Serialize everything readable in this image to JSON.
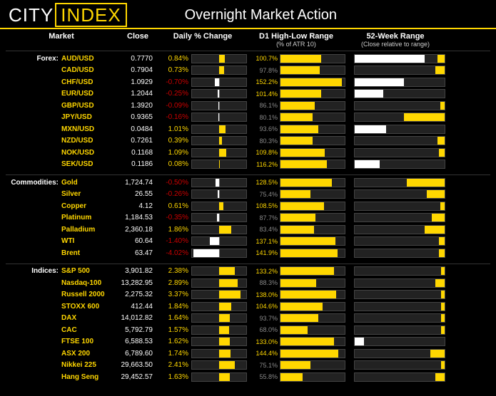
{
  "brand": {
    "part1": "CITY",
    "part2": "INDEX"
  },
  "title": "Overnight Market Action",
  "columns": {
    "market": "Market",
    "close": "Close",
    "daily": "Daily % Change",
    "d1": "D1 High-Low Range",
    "d1_sub": "(% of ATR 10)",
    "w52": "52-Week Range",
    "w52_sub": "(Close relative to range)"
  },
  "chart_style": {
    "daily_max_abs_pct": 4.2,
    "range_max_pct": 160,
    "bar_fill_pos": "#ffd700",
    "bar_fill_neg": "#ffffff",
    "bar_bg": "#222222",
    "bar_border": "#444444",
    "text_pos": "#ffd700",
    "text_neg": "#cc0000",
    "text_muted": "#888888"
  },
  "groups": [
    {
      "name": "Forex:",
      "rows": [
        {
          "m": "AUD/USD",
          "c": "0.7770",
          "p": 0.84,
          "r": 100.7,
          "wl": 0.78,
          "wr": 0.08
        },
        {
          "m": "CAD/USD",
          "c": "0.7904",
          "p": 0.73,
          "r": 97.8,
          "wl": 0.0,
          "wr": 0.1
        },
        {
          "m": "CHF/USD",
          "c": "1.0929",
          "p": -0.7,
          "r": 152.2,
          "wl": 0.55,
          "wr": 0.0
        },
        {
          "m": "EUR/USD",
          "c": "1.2044",
          "p": -0.25,
          "r": 101.4,
          "wl": 0.32,
          "wr": 0.0
        },
        {
          "m": "GBP/USD",
          "c": "1.3920",
          "p": -0.09,
          "r": 86.1,
          "wl": 0.0,
          "wr": 0.05
        },
        {
          "m": "JPY/USD",
          "c": "0.9365",
          "p": -0.16,
          "r": 80.1,
          "wl": 0.0,
          "wr": 0.45
        },
        {
          "m": "MXN/USD",
          "c": "0.0484",
          "p": 1.01,
          "r": 93.6,
          "wl": 0.35,
          "wr": 0.0
        },
        {
          "m": "NZD/USD",
          "c": "0.7261",
          "p": 0.39,
          "r": 80.3,
          "wl": 0.0,
          "wr": 0.08
        },
        {
          "m": "NOK/USD",
          "c": "0.1168",
          "p": 1.09,
          "r": 109.8,
          "wl": 0.0,
          "wr": 0.06
        },
        {
          "m": "SEK/USD",
          "c": "0.1186",
          "p": 0.08,
          "r": 116.2,
          "wl": 0.28,
          "wr": 0.0
        }
      ]
    },
    {
      "name": "Commodities:",
      "rows": [
        {
          "m": "Gold",
          "c": "1,724.74",
          "p": -0.5,
          "r": 128.5,
          "wl": 0.0,
          "wr": 0.42
        },
        {
          "m": "Silver",
          "c": "26.55",
          "p": -0.26,
          "r": 75.4,
          "wl": 0.0,
          "wr": 0.2
        },
        {
          "m": "Copper",
          "c": "4.12",
          "p": 0.61,
          "r": 108.5,
          "wl": 0.0,
          "wr": 0.05
        },
        {
          "m": "Platinum",
          "c": "1,184.53",
          "p": -0.35,
          "r": 87.7,
          "wl": 0.0,
          "wr": 0.14
        },
        {
          "m": "Palladium",
          "c": "2,360.18",
          "p": 1.86,
          "r": 83.4,
          "wl": 0.0,
          "wr": 0.22
        },
        {
          "m": "WTI",
          "c": "60.64",
          "p": -1.4,
          "r": 137.1,
          "wl": 0.0,
          "wr": 0.06
        },
        {
          "m": "Brent",
          "c": "63.47",
          "p": -4.02,
          "r": 141.9,
          "wl": 0.0,
          "wr": 0.06
        }
      ]
    },
    {
      "name": "Indices:",
      "rows": [
        {
          "m": "S&P 500",
          "c": "3,901.82",
          "p": 2.38,
          "r": 133.2,
          "wl": 0.0,
          "wr": 0.04
        },
        {
          "m": "Nasdaq-100",
          "c": "13,282.95",
          "p": 2.89,
          "r": 88.3,
          "wl": 0.0,
          "wr": 0.1
        },
        {
          "m": "Russell 2000",
          "c": "2,275.32",
          "p": 3.37,
          "r": 138.0,
          "wl": 0.0,
          "wr": 0.04
        },
        {
          "m": "STOXX 600",
          "c": "412.44",
          "p": 1.84,
          "r": 104.6,
          "wl": 0.0,
          "wr": 0.04
        },
        {
          "m": "DAX",
          "c": "14,012.82",
          "p": 1.64,
          "r": 93.7,
          "wl": 0.0,
          "wr": 0.04
        },
        {
          "m": "CAC",
          "c": "5,792.79",
          "p": 1.57,
          "r": 68.0,
          "wl": 0.0,
          "wr": 0.04
        },
        {
          "m": "FTSE 100",
          "c": "6,588.53",
          "p": 1.62,
          "r": 133.0,
          "wl": 0.1,
          "wr": 0.0
        },
        {
          "m": "ASX 200",
          "c": "6,789.60",
          "p": 1.74,
          "r": 144.4,
          "wl": 0.0,
          "wr": 0.16
        },
        {
          "m": "Nikkei 225",
          "c": "29,663.50",
          "p": 2.41,
          "r": 75.1,
          "wl": 0.0,
          "wr": 0.04
        },
        {
          "m": "Hang Seng",
          "c": "29,452.57",
          "p": 1.63,
          "r": 55.8,
          "wl": 0.0,
          "wr": 0.1
        }
      ]
    }
  ]
}
